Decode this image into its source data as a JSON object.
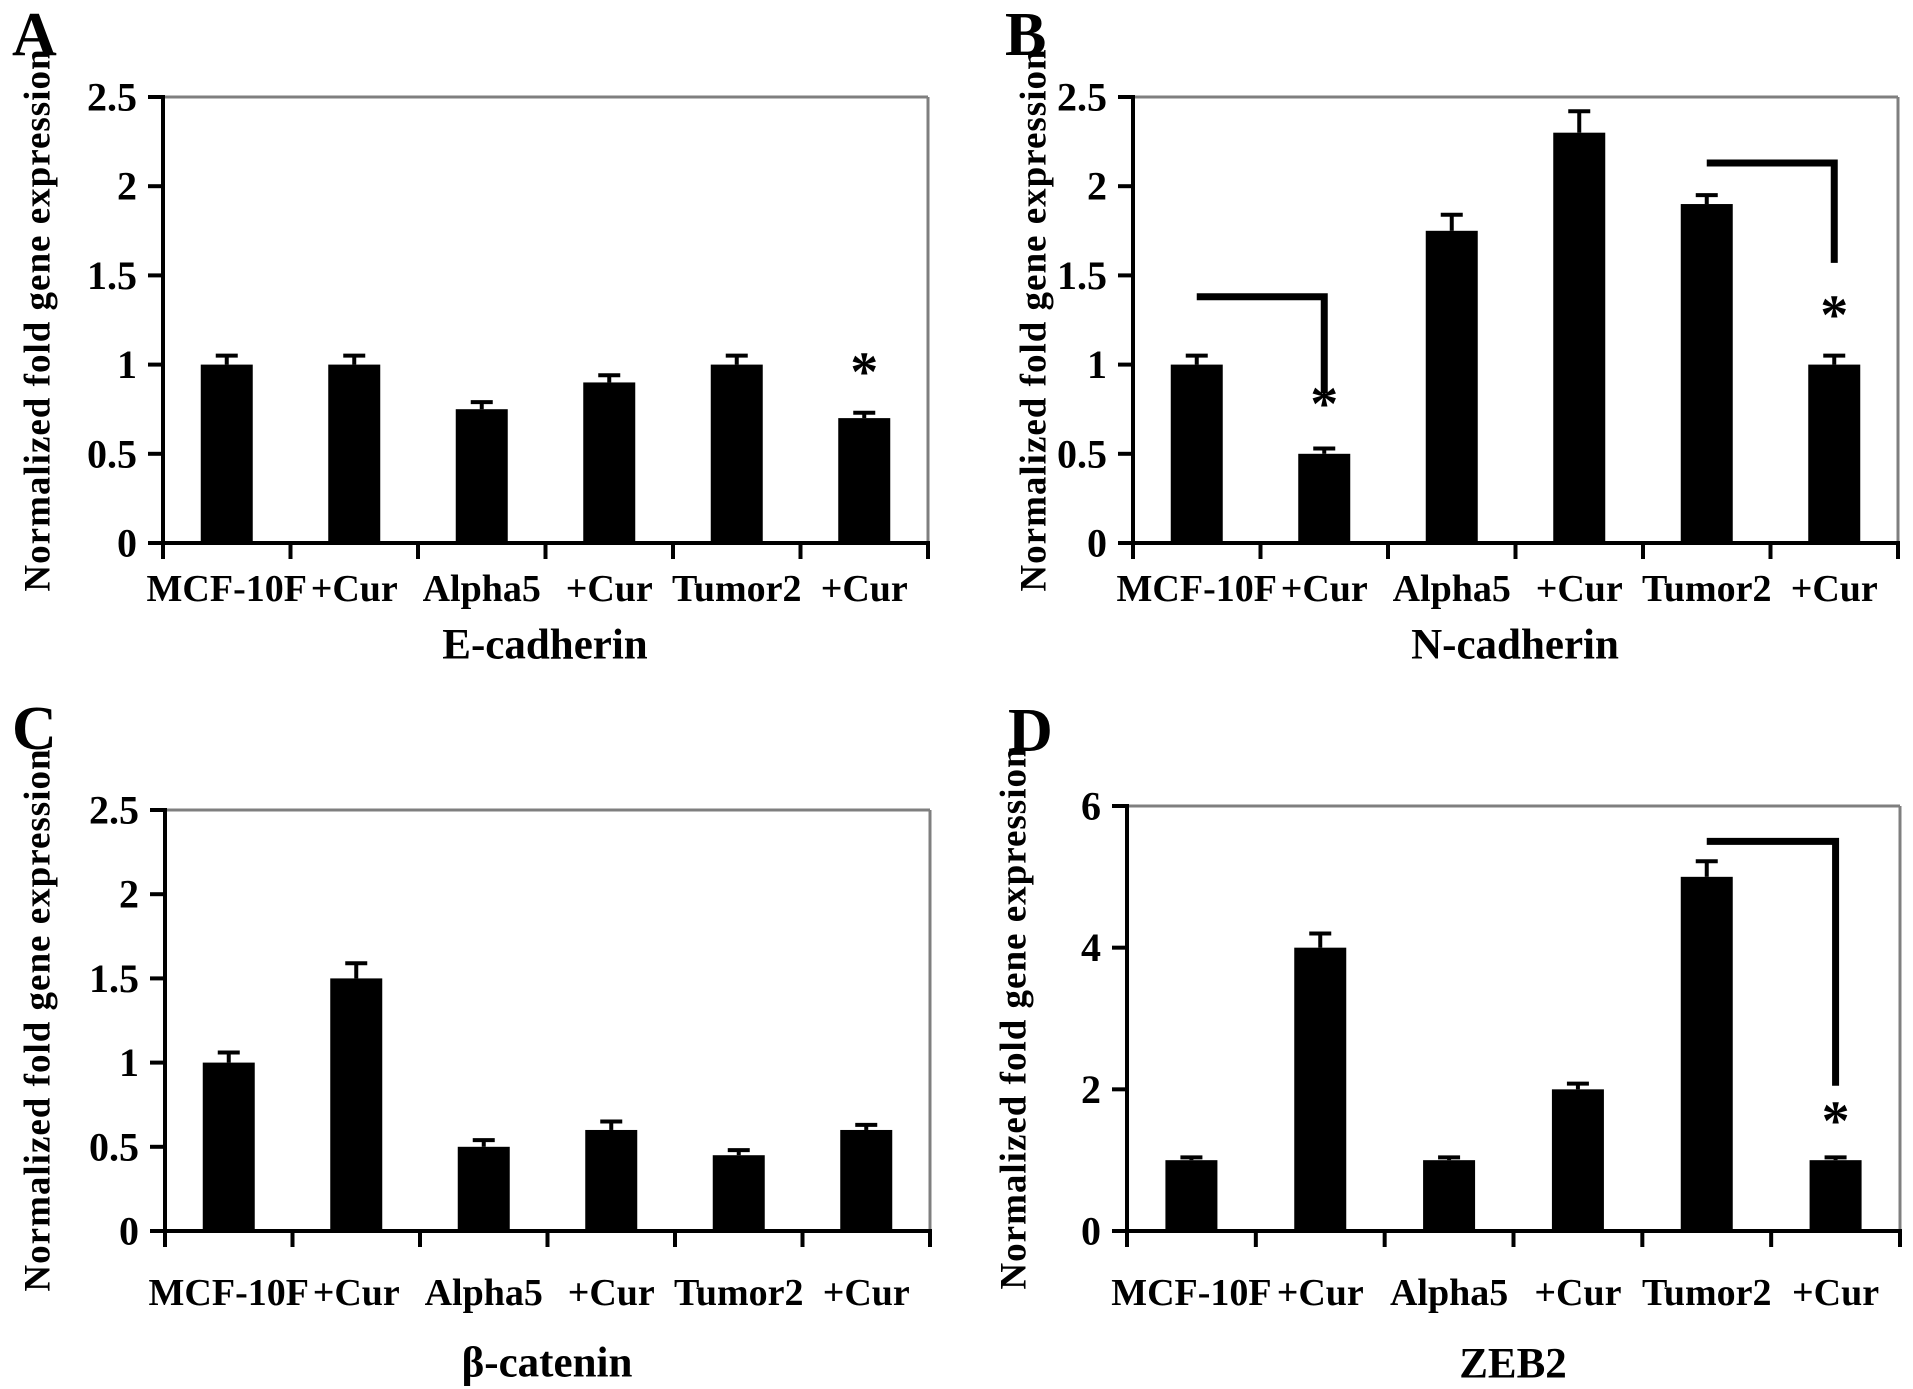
{
  "figure": {
    "background": "#ffffff",
    "bar_color": "#000000",
    "axis_color": "#000000",
    "border_color": "#7f7f7f",
    "y_axis_label": "Normalized fold gene expression",
    "significance_symbol": "*"
  },
  "chart_data": [
    {
      "type": "bar",
      "panel": "A",
      "title": "E-cadherin",
      "ylabel": "Normalized fold gene expression",
      "categories": [
        "MCF-10F",
        "+Cur",
        "Alpha5",
        "+Cur",
        "Tumor2",
        "+Cur"
      ],
      "values": [
        1.0,
        1.0,
        0.75,
        0.9,
        1.0,
        0.7
      ],
      "errors": [
        0.05,
        0.05,
        0.04,
        0.04,
        0.05,
        0.03
      ],
      "ylim": [
        0,
        2.5
      ],
      "yticks": [
        0,
        0.5,
        1,
        1.5,
        2,
        2.5
      ],
      "grid": false,
      "significance": [
        {
          "index": 5,
          "label": "*",
          "y": 1.0
        }
      ],
      "brackets": []
    },
    {
      "type": "bar",
      "panel": "B",
      "title": "N-cadherin",
      "ylabel": "Normalized fold gene expression",
      "categories": [
        "MCF-10F",
        "+Cur",
        "Alpha5",
        "+Cur",
        "Tumor2",
        "+Cur"
      ],
      "values": [
        1.0,
        0.5,
        1.75,
        2.3,
        1.9,
        1.0
      ],
      "errors": [
        0.05,
        0.03,
        0.09,
        0.12,
        0.05,
        0.05
      ],
      "ylim": [
        0,
        2.5
      ],
      "yticks": [
        0,
        0.5,
        1,
        1.5,
        2,
        2.5
      ],
      "grid": false,
      "significance": [
        {
          "index": 1,
          "label": "*",
          "y": 0.82
        },
        {
          "index": 5,
          "label": "*",
          "y": 1.32
        }
      ],
      "brackets": [
        {
          "from": 0,
          "to": 1,
          "top": 1.38,
          "drop_to": 0.84
        },
        {
          "from": 4,
          "to": 5,
          "top": 2.13,
          "drop_to": 1.57
        }
      ]
    },
    {
      "type": "bar",
      "panel": "C",
      "title": "β-catenin",
      "ylabel": "Normalized fold gene expression",
      "categories": [
        "MCF-10F",
        "+Cur",
        "Alpha5",
        "+Cur",
        "Tumor2",
        "+Cur"
      ],
      "values": [
        1.0,
        1.5,
        0.5,
        0.6,
        0.45,
        0.6
      ],
      "errors": [
        0.06,
        0.09,
        0.04,
        0.05,
        0.03,
        0.03
      ],
      "ylim": [
        0,
        2.5
      ],
      "yticks": [
        0,
        0.5,
        1,
        1.5,
        2,
        2.5
      ],
      "grid": false,
      "significance": [],
      "brackets": []
    },
    {
      "type": "bar",
      "panel": "D",
      "title": "ZEB2",
      "ylabel": "Normalized fold gene expression",
      "categories": [
        "MCF-10F",
        "+Cur",
        "Alpha5",
        "+Cur",
        "Tumor2",
        "+Cur"
      ],
      "values": [
        1.0,
        4.0,
        1.0,
        2.0,
        5.0,
        1.0
      ],
      "errors": [
        0.04,
        0.2,
        0.04,
        0.08,
        0.22,
        0.04
      ],
      "ylim": [
        0,
        6
      ],
      "yticks": [
        0,
        2,
        4,
        6
      ],
      "grid": false,
      "significance": [
        {
          "index": 5,
          "label": "*",
          "y": 1.66
        }
      ],
      "brackets": [
        {
          "from": 4,
          "to": 5,
          "top": 5.5,
          "drop_to": 2.05
        }
      ]
    }
  ]
}
